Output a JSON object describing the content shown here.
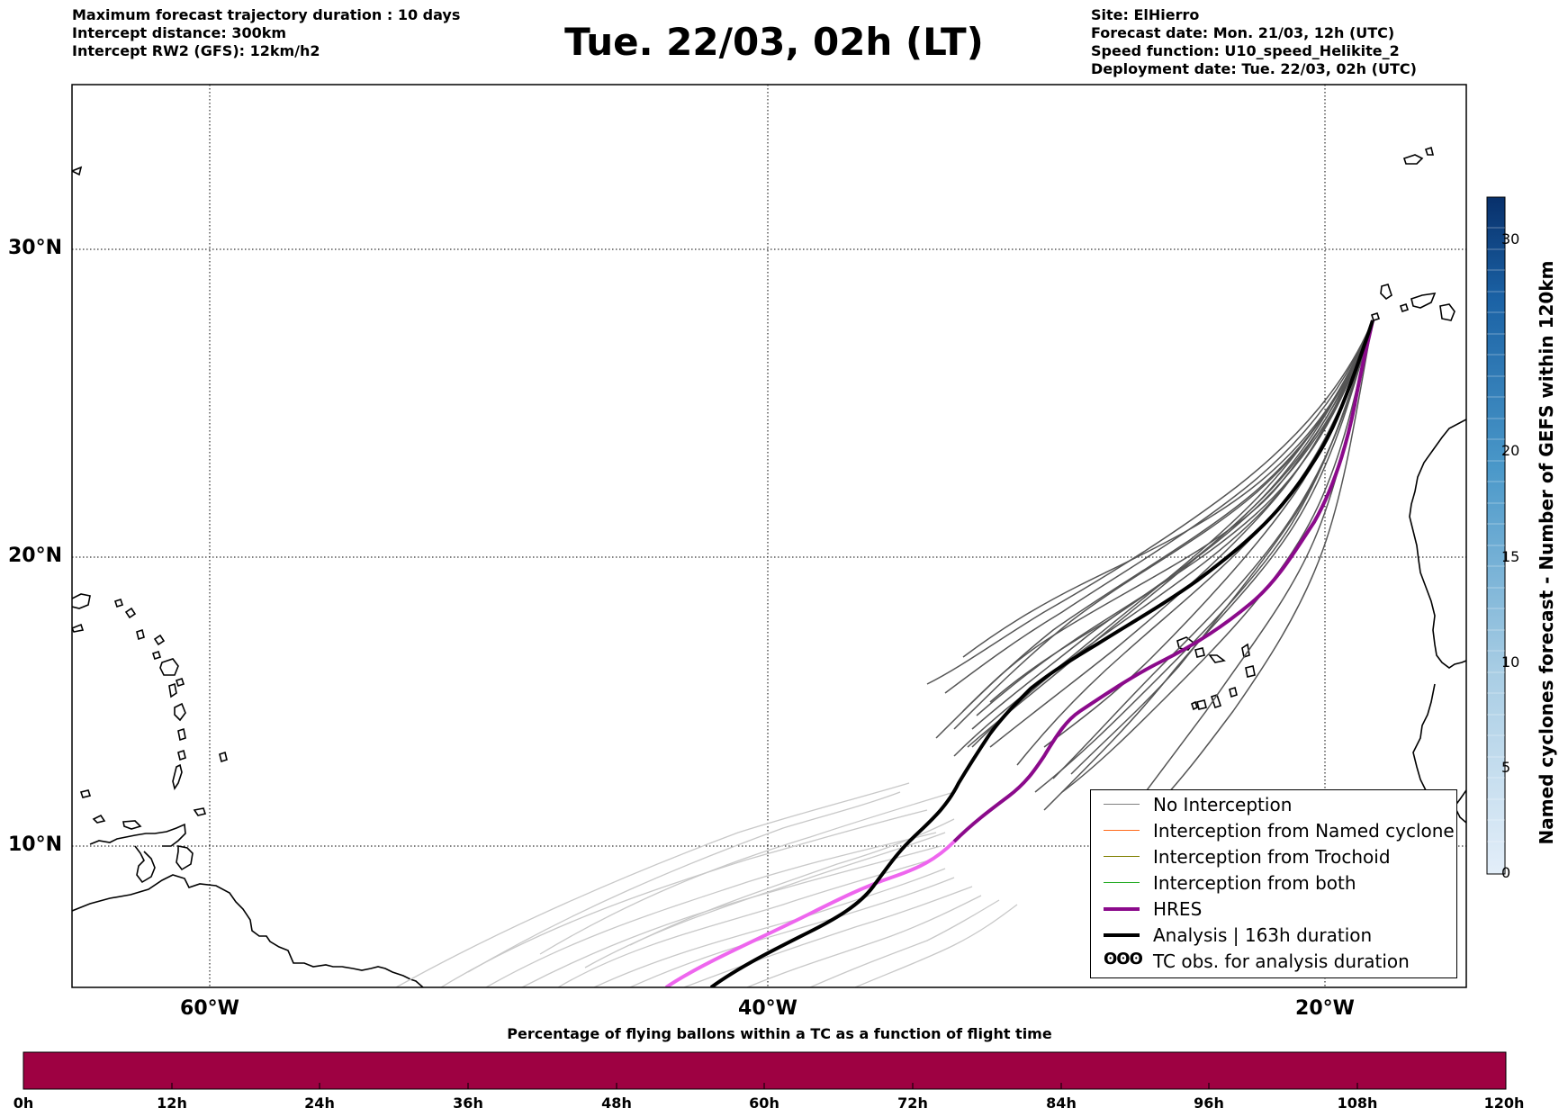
{
  "header_left": [
    "Maximum forecast trajectory duration : 10 days",
    "Intercept distance: 300km",
    "Intercept RW2 (GFS):  12km/h2"
  ],
  "title": "Tue. 22/03, 02h (LT)",
  "header_right": [
    "Site: ElHierro",
    "Forecast date: Mon. 21/03, 12h (UTC)",
    "Speed function: U10_speed_Helikite_2",
    "Deployment date: Tue. 22/03, 02h (UTC)"
  ],
  "map": {
    "lat_labels": [
      "30°N",
      "20°N",
      "10°N"
    ],
    "lon_labels": [
      "60°W",
      "40°W",
      "20°W"
    ],
    "lon_range": [
      -65,
      -15
    ],
    "lat_range": [
      5.3,
      34.7
    ],
    "colors": {
      "analysis": "#000000",
      "hres": "#8b0a8b",
      "hres_light": "#ee66ee",
      "ensemble": "#555555",
      "ensemble_light": "#c8c8c8"
    }
  },
  "legend": {
    "items": [
      {
        "label": "No Interception",
        "color": "#808080"
      },
      {
        "label": "Interception from Named cyclone",
        "color": "#ff6a1a"
      },
      {
        "label": "Interception from Trochoid",
        "color": "#808000"
      },
      {
        "label": "Interception from both",
        "color": "#22aa22"
      },
      {
        "label": "HRES",
        "color": "#8b0a8b"
      },
      {
        "label": "Analysis | 163h duration",
        "color": "#000000"
      }
    ],
    "tc_symbol": "ʘʘʘ",
    "tc_label": "TC obs. for analysis duration"
  },
  "colorbar": {
    "label": "Named cyclones forecast - Number of GEFS within 120km",
    "ticks": [
      "0",
      "5",
      "10",
      "15",
      "20",
      "30"
    ],
    "range": [
      0,
      32
    ]
  },
  "percentage_bar": {
    "title": "Percentage of flying ballons within a TC as a function of flight time",
    "ticks": [
      "0h",
      "12h",
      "24h",
      "36h",
      "48h",
      "60h",
      "72h",
      "84h",
      "96h",
      "108h",
      "120h"
    ],
    "fill_color": "#9e0142"
  }
}
